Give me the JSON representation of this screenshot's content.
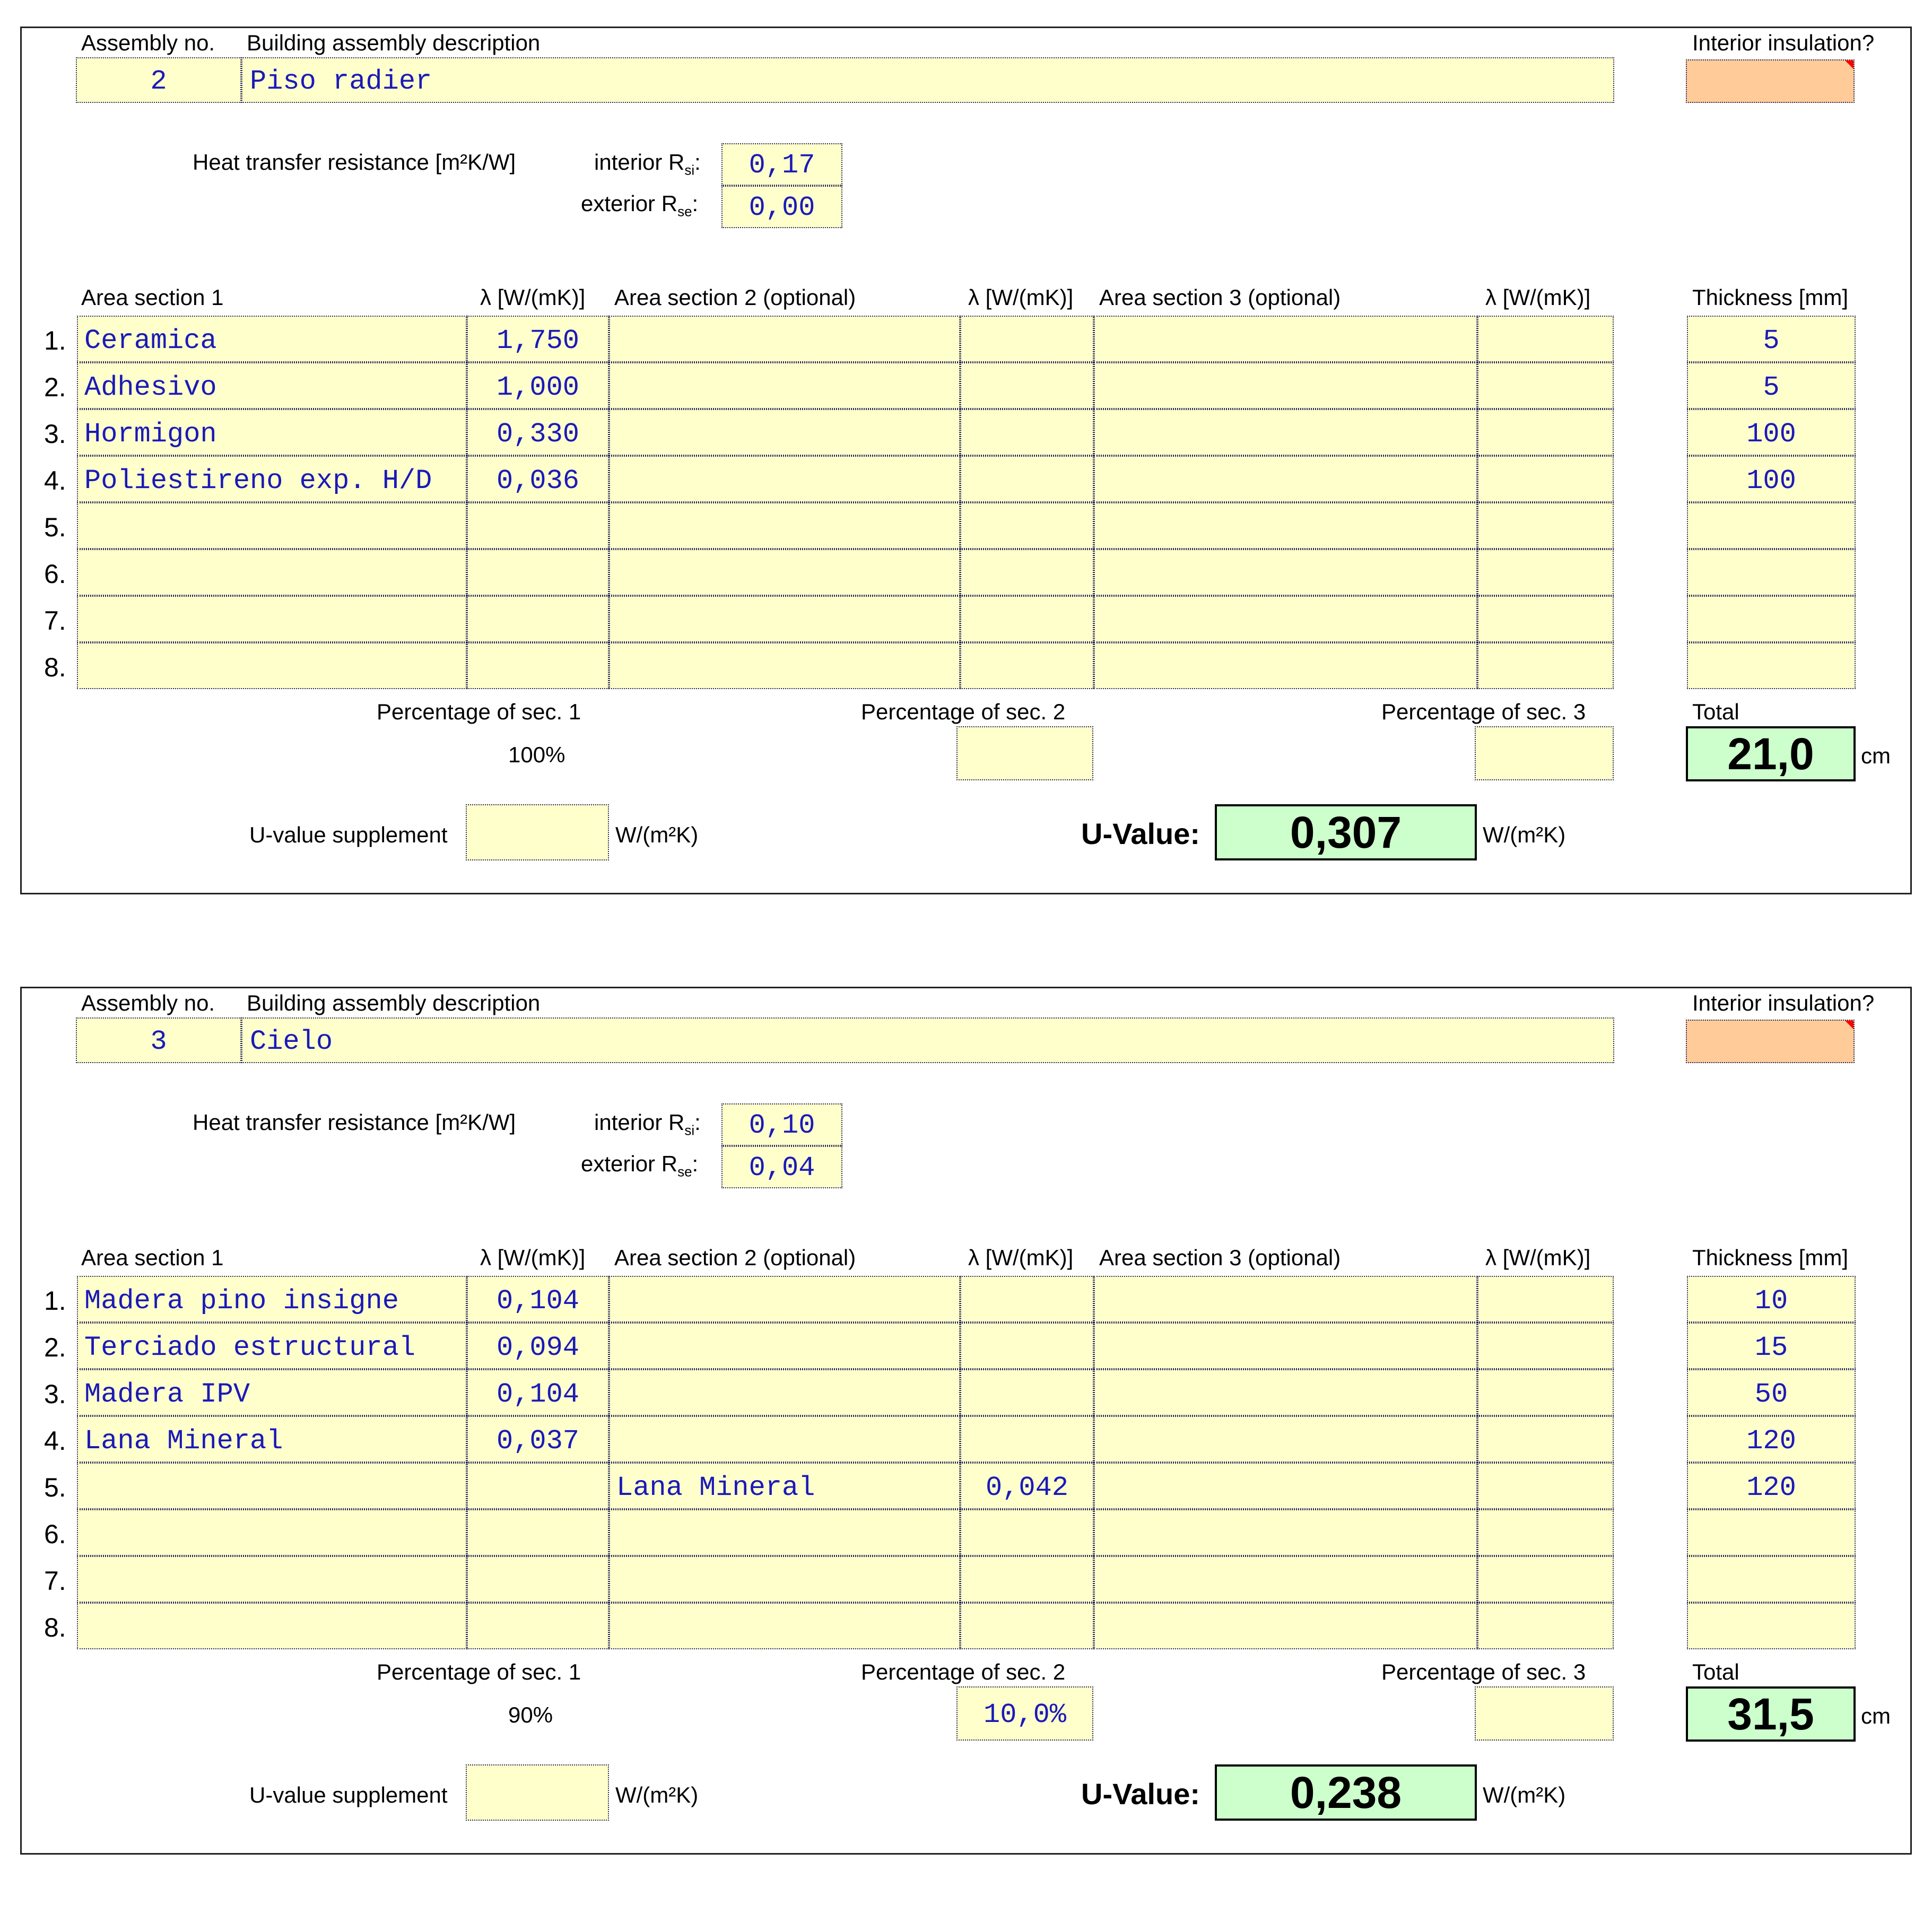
{
  "labels": {
    "assembly_no": "Assembly no.",
    "description": "Building assembly description",
    "interior_insulation": "Interior insulation?",
    "heat_transfer": "Heat transfer resistance [m²K/W]",
    "interior_r": "interior R",
    "interior_r_sub": "si",
    "exterior_r": "exterior R",
    "exterior_r_sub": "se",
    "colon": ":",
    "area_section_1": "Area section 1",
    "area_section_2": "Area section 2 (optional)",
    "area_section_3": "Area section 3 (optional)",
    "lambda": "λ [W/(mK)]",
    "thickness": "Thickness [mm]",
    "pct_sec1": "Percentage of sec. 1",
    "pct_sec2": "Percentage of sec. 2",
    "pct_sec3": "Percentage of sec. 3",
    "total": "Total",
    "cm": "cm",
    "u_supplement": "U-value supplement",
    "u_unit": "W/(m²K)",
    "u_value": "U-Value:"
  },
  "row_numbers": [
    "1.",
    "2.",
    "3.",
    "4.",
    "5.",
    "6.",
    "7.",
    "8."
  ],
  "assemblies": [
    {
      "number": "2",
      "description": "Piso radier",
      "rsi": "0,17",
      "rse": "0,00",
      "rows": [
        {
          "s1": "Ceramica",
          "l1": "1,750",
          "s2": "",
          "l2": "",
          "s3": "",
          "l3": "",
          "t": "5"
        },
        {
          "s1": "Adhesivo",
          "l1": "1,000",
          "s2": "",
          "l2": "",
          "s3": "",
          "l3": "",
          "t": "5"
        },
        {
          "s1": "Hormigon",
          "l1": "0,330",
          "s2": "",
          "l2": "",
          "s3": "",
          "l3": "",
          "t": "100"
        },
        {
          "s1": "Poliestireno exp. H/D",
          "l1": "0,036",
          "s2": "",
          "l2": "",
          "s3": "",
          "l3": "",
          "t": "100"
        },
        {
          "s1": "",
          "l1": "",
          "s2": "",
          "l2": "",
          "s3": "",
          "l3": "",
          "t": ""
        },
        {
          "s1": "",
          "l1": "",
          "s2": "",
          "l2": "",
          "s3": "",
          "l3": "",
          "t": ""
        },
        {
          "s1": "",
          "l1": "",
          "s2": "",
          "l2": "",
          "s3": "",
          "l3": "",
          "t": ""
        },
        {
          "s1": "",
          "l1": "",
          "s2": "",
          "l2": "",
          "s3": "",
          "l3": "",
          "t": ""
        }
      ],
      "pct1": "100%",
      "pct2": "",
      "pct3": "",
      "total": "21,0",
      "u_supplement": "",
      "u_value": "0,307"
    },
    {
      "number": "3",
      "description": "Cielo",
      "rsi": "0,10",
      "rse": "0,04",
      "rows": [
        {
          "s1": "Madera pino insigne",
          "l1": "0,104",
          "s2": "",
          "l2": "",
          "s3": "",
          "l3": "",
          "t": "10"
        },
        {
          "s1": "Terciado estructural",
          "l1": "0,094",
          "s2": "",
          "l2": "",
          "s3": "",
          "l3": "",
          "t": "15"
        },
        {
          "s1": "Madera IPV",
          "l1": "0,104",
          "s2": "",
          "l2": "",
          "s3": "",
          "l3": "",
          "t": "50"
        },
        {
          "s1": "Lana Mineral",
          "l1": "0,037",
          "s2": "",
          "l2": "",
          "s3": "",
          "l3": "",
          "t": "120"
        },
        {
          "s1": "",
          "l1": "",
          "s2": "Lana Mineral",
          "l2": "0,042",
          "s3": "",
          "l3": "",
          "t": "120"
        },
        {
          "s1": "",
          "l1": "",
          "s2": "",
          "l2": "",
          "s3": "",
          "l3": "",
          "t": ""
        },
        {
          "s1": "",
          "l1": "",
          "s2": "",
          "l2": "",
          "s3": "",
          "l3": "",
          "t": ""
        },
        {
          "s1": "",
          "l1": "",
          "s2": "",
          "l2": "",
          "s3": "",
          "l3": "",
          "t": ""
        }
      ],
      "pct1": "90%",
      "pct2": "10,0%",
      "pct3": "",
      "total": "31,5",
      "u_supplement": "",
      "u_value": "0,238"
    }
  ]
}
